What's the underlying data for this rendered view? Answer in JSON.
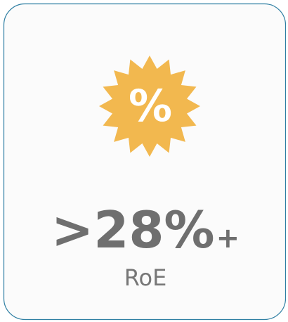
{
  "stat": {
    "value": ">28%",
    "suffix": "+",
    "label": "RoE"
  },
  "badge": {
    "symbol": "%"
  }
}
